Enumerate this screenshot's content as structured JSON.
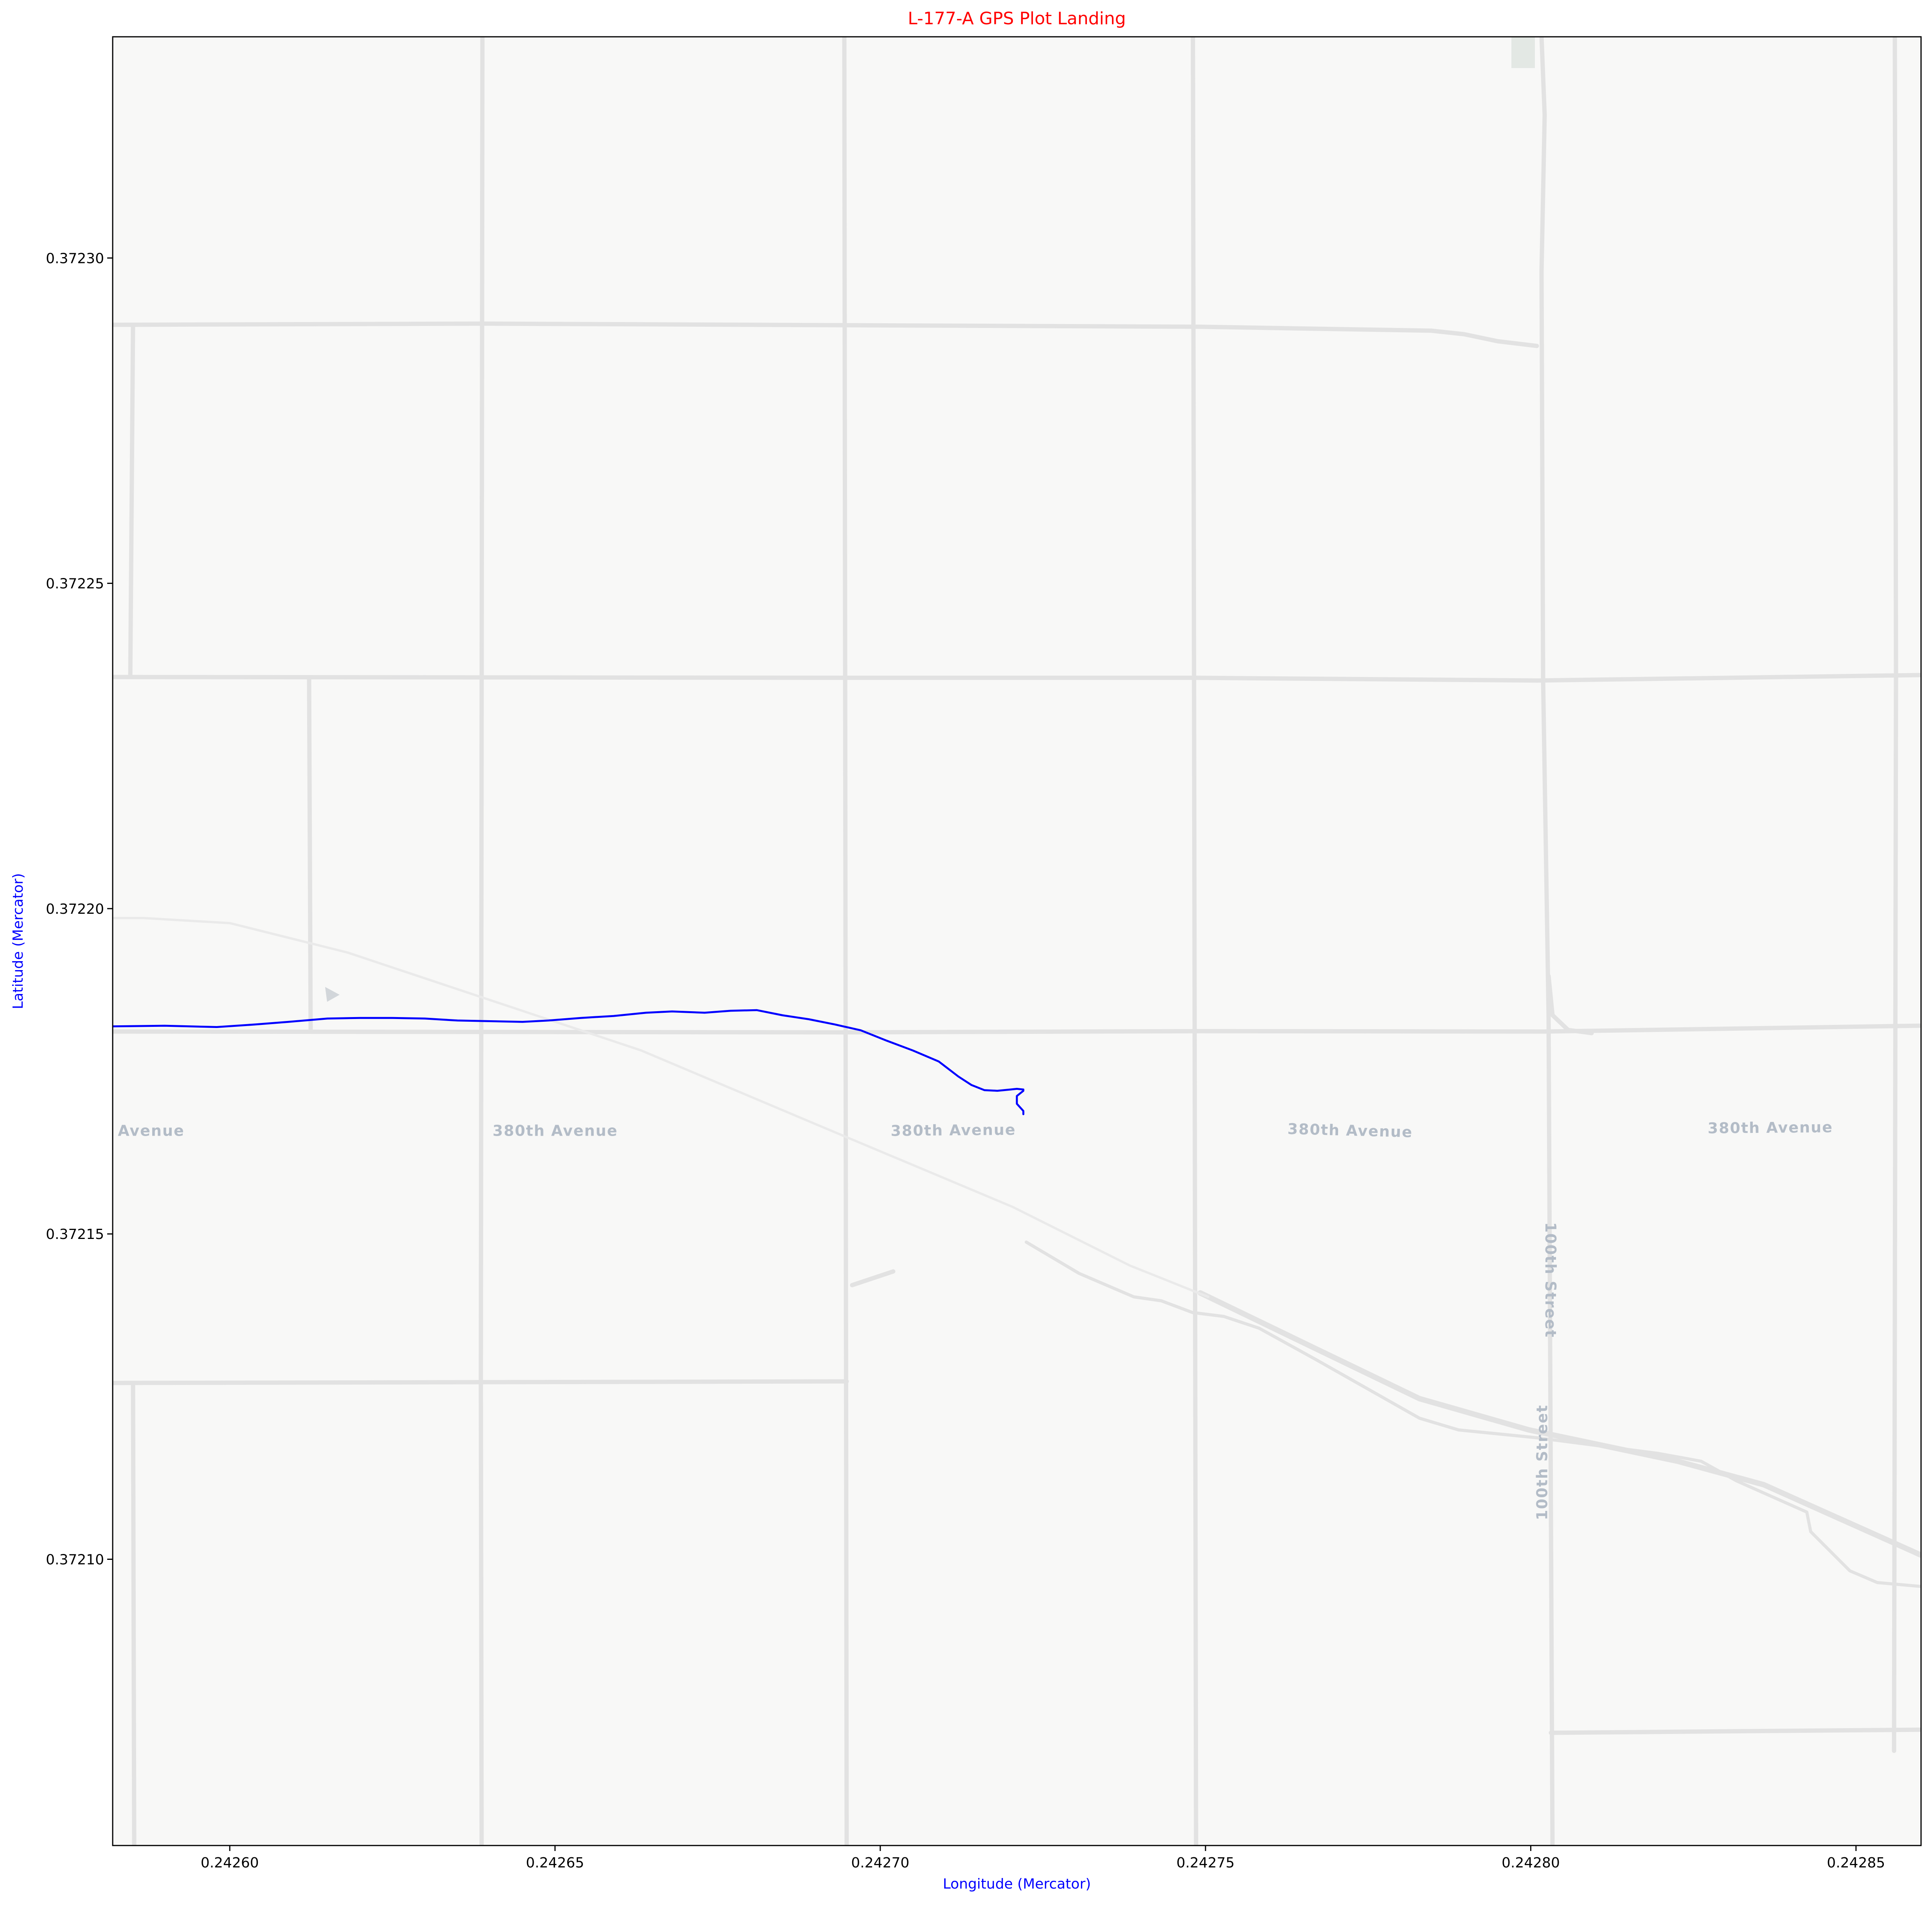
{
  "chart_data": {
    "type": "line",
    "title": "L-177-A GPS Plot Landing",
    "xlabel": "Longitude (Mercator)",
    "ylabel": "Latitude (Mercator)",
    "xlim": [
      0.242582,
      0.24286
    ],
    "ylim": [
      0.372334,
      0.372056
    ],
    "y_inverted": true,
    "grid": false,
    "colors": {
      "title": "#ff0000",
      "axis_labels": "#0000ff",
      "track": "#0000ff",
      "basemap": "#f8f8f7",
      "roads": "#e2e2e2",
      "road_labels": "#b3bcc7"
    },
    "xticks": [
      {
        "value": 0.2426,
        "label": "0.24260"
      },
      {
        "value": 0.24265,
        "label": "0.24265"
      },
      {
        "value": 0.2427,
        "label": "0.24270"
      },
      {
        "value": 0.24275,
        "label": "0.24275"
      },
      {
        "value": 0.2428,
        "label": "0.24280"
      },
      {
        "value": 0.24285,
        "label": "0.24285"
      }
    ],
    "yticks": [
      {
        "value": 0.3721,
        "label": "0.37210"
      },
      {
        "value": 0.37215,
        "label": "0.37215"
      },
      {
        "value": 0.3722,
        "label": "0.37220"
      },
      {
        "value": 0.37225,
        "label": "0.37225"
      },
      {
        "value": 0.3723,
        "label": "0.37230"
      }
    ],
    "series": [
      {
        "x": [
          0.242582,
          0.24259,
          0.242598,
          0.242604,
          0.242609,
          0.242615,
          0.24262,
          0.242625,
          0.24263,
          0.242635,
          0.24264,
          0.242645,
          0.242649,
          0.242654,
          0.242659,
          0.242664,
          0.242668,
          0.242673,
          0.242677,
          0.242681,
          0.242685,
          0.242689,
          0.242693,
          0.242697,
          0.242701,
          0.242705,
          0.242709,
          0.242712,
          0.242714,
          0.242716,
          0.242718,
          0.24272,
          0.242721,
          0.242722,
          0.242722,
          0.242721,
          0.242721,
          0.242722,
          0.242722
        ],
        "y": [
          0.3721819,
          0.372182,
          0.3721818,
          0.3721822,
          0.3721826,
          0.3721831,
          0.3721832,
          0.3721832,
          0.3721831,
          0.3721828,
          0.3721827,
          0.3721826,
          0.3721828,
          0.3721832,
          0.3721835,
          0.372184,
          0.3721842,
          0.372184,
          0.3721843,
          0.3721844,
          0.3721836,
          0.372183,
          0.3721822,
          0.3721813,
          0.3721797,
          0.3721782,
          0.3721765,
          0.3721742,
          0.3721729,
          0.3721721,
          0.372172,
          0.3721722,
          0.3721723,
          0.3721722,
          0.372172,
          0.3721712,
          0.37217,
          0.3721689,
          0.3721684
        ]
      }
    ],
    "map": {
      "road_labels": [
        {
          "text": "Avenue",
          "lon": 0.2425828,
          "lat": 0.3721657,
          "angle": 0
        },
        {
          "text": "380th Avenue",
          "lon": 0.2426404,
          "lat": 0.3721657,
          "angle": 0
        },
        {
          "text": "380th Avenue",
          "lon": 0.2427016,
          "lat": 0.3721657,
          "angle": -0.5
        },
        {
          "text": "380th Avenue",
          "lon": 0.2427626,
          "lat": 0.372166,
          "angle": 1.5
        },
        {
          "text": "380th Avenue",
          "lon": 0.2428272,
          "lat": 0.3721661,
          "angle": -0.5
        },
        {
          "text": "100th Street",
          "lon": 0.2428019,
          "lat": 0.372106,
          "angle": -90
        },
        {
          "text": "100th Street",
          "lon": 0.2428029,
          "lat": 0.3721518,
          "angle": 90
        }
      ]
    }
  }
}
